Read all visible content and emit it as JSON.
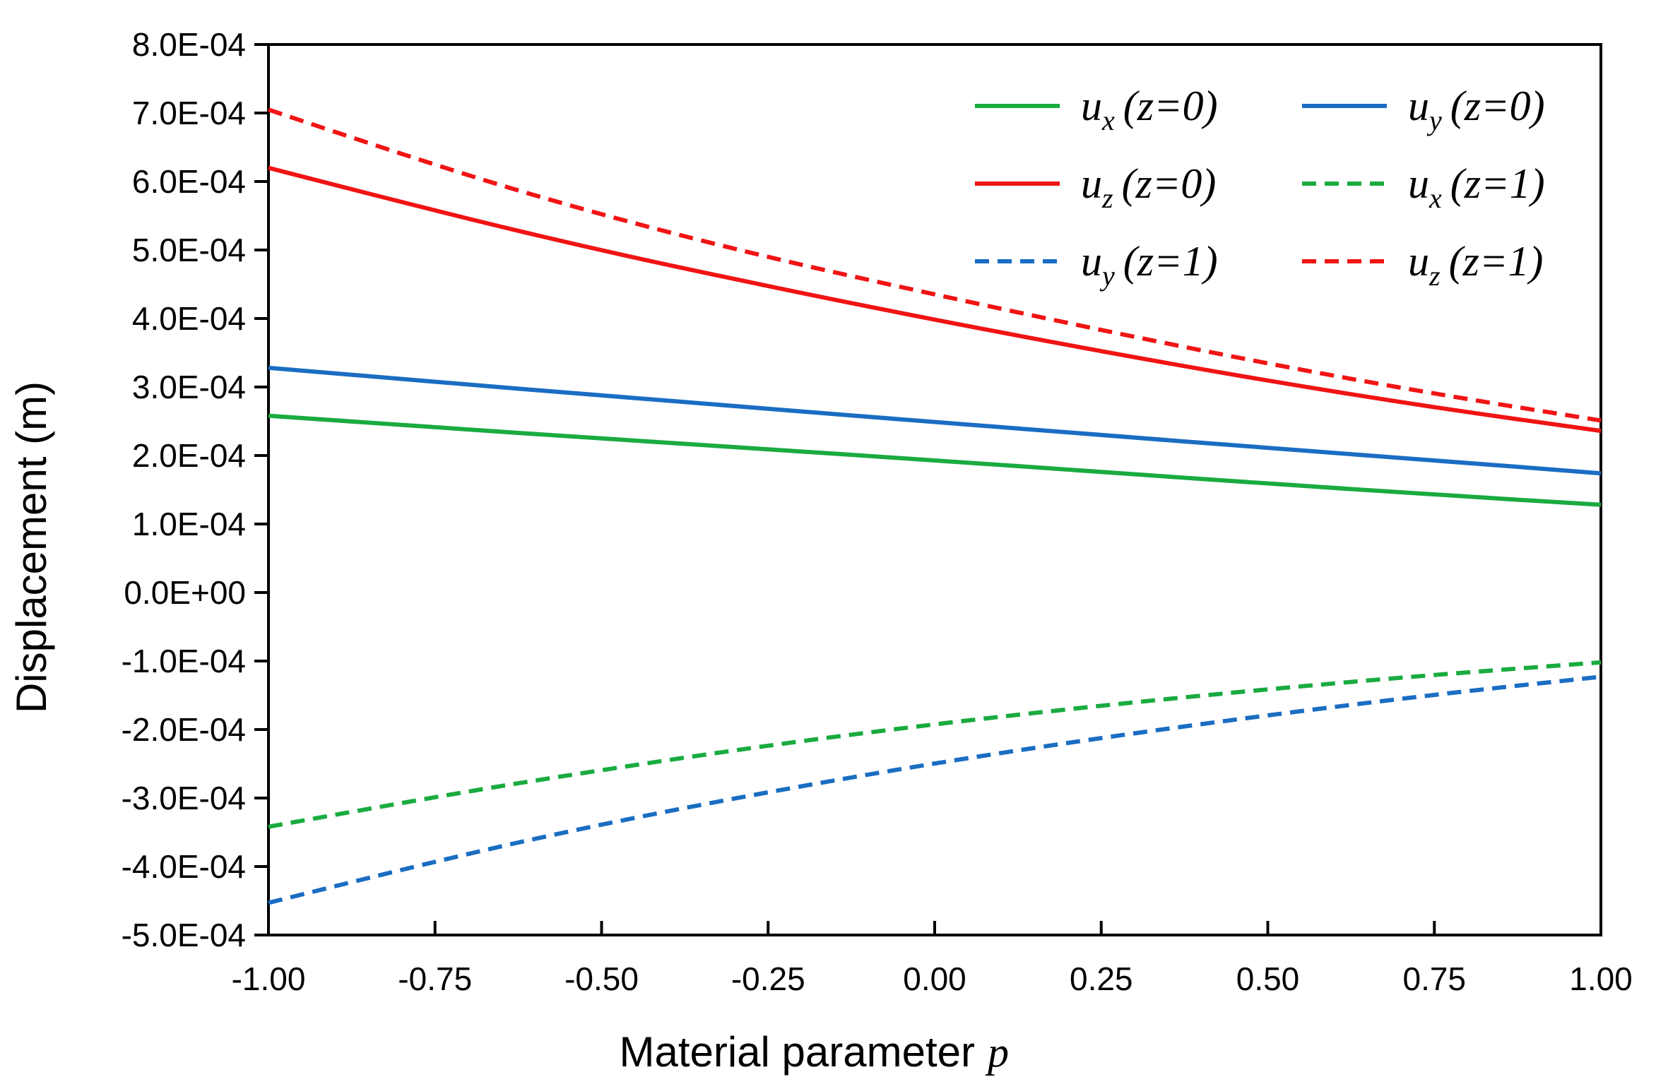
{
  "chart_data": {
    "type": "line",
    "xlabel": "Material parameter",
    "xlabel_var": "p",
    "ylabel": "Displacement (m)",
    "xlim": [
      -1.0,
      1.0
    ],
    "ylim": [
      -0.0005,
      0.0008
    ],
    "x_ticks": [
      -1.0,
      -0.75,
      -0.5,
      -0.25,
      0.0,
      0.25,
      0.5,
      0.75,
      1.0
    ],
    "x_tick_labels": [
      "-1.00",
      "-0.75",
      "-0.50",
      "-0.25",
      "0.00",
      "0.25",
      "0.50",
      "0.75",
      "1.00"
    ],
    "y_ticks": [
      0.0008,
      0.0007,
      0.0006,
      0.0005,
      0.0004,
      0.0003,
      0.0002,
      0.0001,
      0.0,
      -0.0001,
      -0.0002,
      -0.0003,
      -0.0004,
      -0.0005
    ],
    "y_tick_labels": [
      "8.0E-04",
      "7.0E-04",
      "6.0E-04",
      "5.0E-04",
      "4.0E-04",
      "3.0E-04",
      "2.0E-04",
      "1.0E-04",
      "0.0E+00",
      "-1.0E-04",
      "-2.0E-04",
      "-3.0E-04",
      "-4.0E-04",
      "-5.0E-04"
    ],
    "x": [
      -1.0,
      -0.75,
      -0.5,
      -0.25,
      0.0,
      0.25,
      0.5,
      0.75,
      1.0
    ],
    "legend_position": "top-right",
    "series": [
      {
        "name": "u_x (z=0)",
        "var": "u",
        "sub": "x",
        "cond": "(z=0)",
        "color": "#1aab40",
        "dash": false,
        "values": [
          0.000258,
          0.000241,
          0.000225,
          0.000209,
          0.000193,
          0.000176,
          0.000159,
          0.000143,
          0.000128
        ]
      },
      {
        "name": "u_y (z=0)",
        "var": "u",
        "sub": "y",
        "cond": "(z=0)",
        "color": "#1a6dc2",
        "dash": false,
        "values": [
          0.000328,
          0.000307,
          0.000288,
          0.000268,
          0.000249,
          0.00023,
          0.000211,
          0.000193,
          0.000174
        ]
      },
      {
        "name": "u_z (z=0)",
        "var": "u",
        "sub": "z",
        "cond": "(z=0)",
        "color": "#f01414",
        "dash": false,
        "values": [
          0.00062,
          0.000557,
          0.000499,
          0.000447,
          0.000398,
          0.000352,
          0.000309,
          0.00027,
          0.000236
        ]
      },
      {
        "name": "u_x (z=1)",
        "var": "u",
        "sub": "x",
        "cond": "(z=1)",
        "color": "#1aab40",
        "dash": true,
        "values": [
          -0.000342,
          -0.000298,
          -0.000259,
          -0.000223,
          -0.000192,
          -0.000165,
          -0.000141,
          -0.00012,
          -0.000102
        ]
      },
      {
        "name": "u_y (z=1)",
        "var": "u",
        "sub": "y",
        "cond": "(z=1)",
        "color": "#1a6dc2",
        "dash": true,
        "values": [
          -0.000453,
          -0.000392,
          -0.000338,
          -0.000291,
          -0.000249,
          -0.000212,
          -0.000179,
          -0.000149,
          -0.000123
        ]
      },
      {
        "name": "u_z (z=1)",
        "var": "u",
        "sub": "z",
        "cond": "(z=1)",
        "color": "#f01414",
        "dash": true,
        "values": [
          0.000705,
          0.000623,
          0.000551,
          0.000489,
          0.000435,
          0.000383,
          0.000334,
          0.00029,
          0.000251
        ]
      }
    ]
  }
}
